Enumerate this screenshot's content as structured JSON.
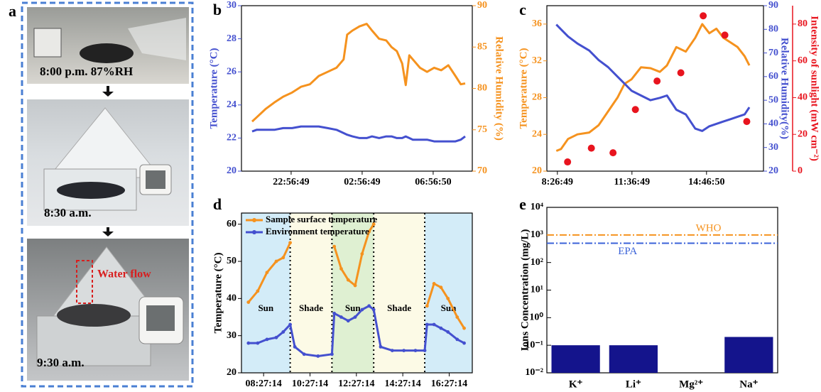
{
  "photos": {
    "panel": "a",
    "captions": [
      "8:00 p.m. 87%RH",
      "8:30 a.m.",
      "9:30 a.m."
    ],
    "annotation": "Water flow"
  },
  "chart_data": [
    {
      "type": "line",
      "panel": "b",
      "ylabel": "Temperature (°C)",
      "y2label": "Relative Humidity (%)",
      "xlim": [
        20.15,
        33.15
      ],
      "xticks": [
        {
          "value": 22.947,
          "label": "22:56:49"
        },
        {
          "value": 26.947,
          "label": "02:56:49"
        },
        {
          "value": 30.947,
          "label": "06:56:50"
        }
      ],
      "ylim": [
        20,
        30
      ],
      "yticks": [
        20,
        22,
        24,
        26,
        28,
        30
      ],
      "y2lim": [
        70,
        90
      ],
      "y2ticks": [
        70,
        75,
        80,
        85,
        90
      ],
      "x": [
        20.75,
        21.0,
        21.5,
        22.0,
        22.5,
        23.0,
        23.5,
        24.0,
        24.5,
        25.0,
        25.5,
        25.9,
        26.1,
        26.4,
        26.8,
        27.2,
        27.5,
        27.9,
        28.3,
        28.6,
        28.9,
        29.2,
        29.4,
        29.6,
        29.8,
        30.2,
        30.6,
        31.0,
        31.4,
        31.8,
        32.2,
        32.5,
        32.75
      ],
      "series": [
        {
          "color": "#4450cf",
          "axis": "y",
          "values": [
            22.4,
            22.5,
            22.5,
            22.5,
            22.6,
            22.6,
            22.7,
            22.7,
            22.7,
            22.6,
            22.5,
            22.3,
            22.2,
            22.1,
            22.0,
            22.0,
            22.1,
            22.0,
            22.1,
            22.1,
            22.0,
            22.0,
            22.1,
            22.0,
            21.9,
            21.9,
            21.9,
            21.8,
            21.8,
            21.8,
            21.8,
            21.9,
            22.1
          ]
        },
        {
          "color": "#f5921e",
          "axis": "y2",
          "values": [
            76.0,
            76.5,
            77.5,
            78.3,
            79.0,
            79.5,
            80.2,
            80.5,
            81.5,
            82.0,
            82.5,
            83.5,
            86.5,
            87.0,
            87.5,
            87.8,
            87.0,
            86.0,
            85.8,
            85.0,
            84.5,
            83.0,
            80.4,
            84.0,
            83.5,
            82.5,
            82.0,
            82.5,
            82.2,
            82.8,
            81.5,
            80.5,
            80.6
          ]
        }
      ]
    },
    {
      "type": "line",
      "panel": "c",
      "ylabel": "Temperature (°C)",
      "y2label": "Relative Humidity(%)",
      "y3label": "Intensity of sunlight (mW cm⁻²)",
      "xlim": [
        8.0,
        17.2
      ],
      "xticks": [
        {
          "value": 8.447,
          "label": "8:26:49"
        },
        {
          "value": 11.614,
          "label": "11:36:49"
        },
        {
          "value": 14.781,
          "label": "14:46:50"
        }
      ],
      "ylim": [
        20,
        38
      ],
      "yticks": [
        20,
        24,
        28,
        32,
        36
      ],
      "y2lim": [
        20,
        90
      ],
      "y2ticks": [
        20,
        30,
        40,
        50,
        60,
        70,
        80,
        90
      ],
      "y3lim": [
        0,
        90
      ],
      "y3ticks": [
        0,
        20,
        40,
        60,
        80
      ],
      "series": [
        {
          "color": "#f5921e",
          "axis": "y",
          "x": [
            8.4,
            8.6,
            8.9,
            9.3,
            9.8,
            10.2,
            10.6,
            11.0,
            11.3,
            11.6,
            12.0,
            12.4,
            12.8,
            13.1,
            13.5,
            13.9,
            14.3,
            14.6,
            14.9,
            15.2,
            15.5,
            15.8,
            16.1,
            16.4,
            16.6
          ],
          "values": [
            22.2,
            22.4,
            23.5,
            24.0,
            24.2,
            25.0,
            26.5,
            28.0,
            29.5,
            30.0,
            31.3,
            31.2,
            30.8,
            31.5,
            33.5,
            33.0,
            34.5,
            36.0,
            35.0,
            35.5,
            34.5,
            34.0,
            33.5,
            32.5,
            31.5
          ]
        },
        {
          "color": "#4450cf",
          "axis": "y2",
          "x": [
            8.4,
            8.6,
            8.9,
            9.3,
            9.8,
            10.2,
            10.6,
            11.0,
            11.3,
            11.6,
            12.0,
            12.4,
            12.8,
            13.1,
            13.5,
            13.9,
            14.3,
            14.6,
            14.9,
            15.2,
            15.5,
            15.8,
            16.1,
            16.4,
            16.6
          ],
          "values": [
            82,
            80,
            77,
            74,
            71,
            67,
            64,
            60,
            57,
            54,
            52,
            50,
            51,
            52,
            46,
            44,
            38,
            37,
            39,
            40,
            41,
            42,
            43,
            44,
            47
          ]
        },
        {
          "color": "#e8141e",
          "axis": "y3",
          "marker_only": true,
          "x": [
            8.88,
            9.89,
            10.81,
            11.76,
            12.68,
            13.69,
            14.64,
            15.56,
            16.49
          ],
          "values": [
            5,
            12.5,
            10,
            33.5,
            49,
            53.5,
            84.5,
            74,
            27
          ]
        }
      ]
    },
    {
      "type": "line",
      "panel": "d",
      "ylabel": "Temperature (°C)",
      "legend": "upper left",
      "marker": "circle",
      "xlim": [
        7.5,
        17.45
      ],
      "xticks": [
        {
          "value": 8.454,
          "label": "08:27:14"
        },
        {
          "value": 10.454,
          "label": "10:27:14"
        },
        {
          "value": 12.454,
          "label": "12:27:14"
        },
        {
          "value": 14.454,
          "label": "14:27:14"
        },
        {
          "value": 16.454,
          "label": "16:27:14"
        }
      ],
      "ylim": [
        20,
        63
      ],
      "yticks": [
        20,
        30,
        40,
        50,
        60
      ],
      "regions": [
        {
          "label": "Sun",
          "range": [
            7.5,
            9.6
          ],
          "color": "#d3ecf8"
        },
        {
          "label": "Shade",
          "range": [
            9.6,
            11.4
          ],
          "color": "#fcfae6"
        },
        {
          "label": "Sun",
          "range": [
            11.4,
            13.2
          ],
          "color": "#dff0d2"
        },
        {
          "label": "Shade",
          "range": [
            13.2,
            15.4
          ],
          "color": "#fcfae6"
        },
        {
          "label": "Sun",
          "range": [
            15.4,
            17.45
          ],
          "color": "#d3ecf8"
        }
      ],
      "x": [
        7.8,
        8.2,
        8.6,
        9.0,
        9.3,
        9.6,
        9.8,
        10.2,
        10.8,
        11.4,
        11.5,
        11.8,
        12.1,
        12.4,
        12.7,
        13.0,
        13.2,
        13.5,
        14.0,
        14.5,
        15.0,
        15.4,
        15.5,
        15.8,
        16.1,
        16.4,
        16.8,
        17.1
      ],
      "series": [
        {
          "name": "Sample surface temperature",
          "color": "#f5921e",
          "axis": "y",
          "values": [
            39,
            42,
            47,
            50,
            51,
            55,
            null,
            null,
            null,
            null,
            54,
            48,
            45,
            43.5,
            52,
            58,
            60,
            null,
            null,
            null,
            null,
            null,
            38,
            44,
            43,
            40,
            35,
            32
          ]
        },
        {
          "name": "Environment temperature",
          "color": "#4450cf",
          "axis": "y",
          "values": [
            28,
            28,
            29,
            29.5,
            31,
            33,
            27,
            25,
            24.5,
            25,
            36,
            35,
            34,
            35,
            37,
            38,
            37,
            27,
            26,
            26,
            26,
            26,
            33,
            33,
            32,
            31,
            29,
            28
          ]
        }
      ]
    },
    {
      "type": "bar",
      "panel": "e",
      "ylabel": "Ions Concentration (mg/L)",
      "log_scale": true,
      "color": "#14148c",
      "categories": [
        "K⁺",
        "Li⁺",
        "Mg²⁺",
        "Na⁺"
      ],
      "values": [
        0.1,
        0.1,
        null,
        0.2
      ],
      "ylim": [
        0.01,
        10000
      ],
      "yticks": [
        {
          "value": 0.01,
          "label": "10⁻²"
        },
        {
          "value": 0.1,
          "label": "10⁻¹"
        },
        {
          "value": 1,
          "label": "10⁰"
        },
        {
          "value": 10,
          "label": "10¹"
        },
        {
          "value": 100,
          "label": "10²"
        },
        {
          "value": 1000,
          "label": "10³"
        },
        {
          "value": 10000,
          "label": "10⁴"
        }
      ],
      "reference_lines": [
        {
          "label": "WHO",
          "value": 1000,
          "color": "#f5921e"
        },
        {
          "label": "EPA",
          "value": 500,
          "color": "#3a62d8"
        }
      ]
    }
  ]
}
